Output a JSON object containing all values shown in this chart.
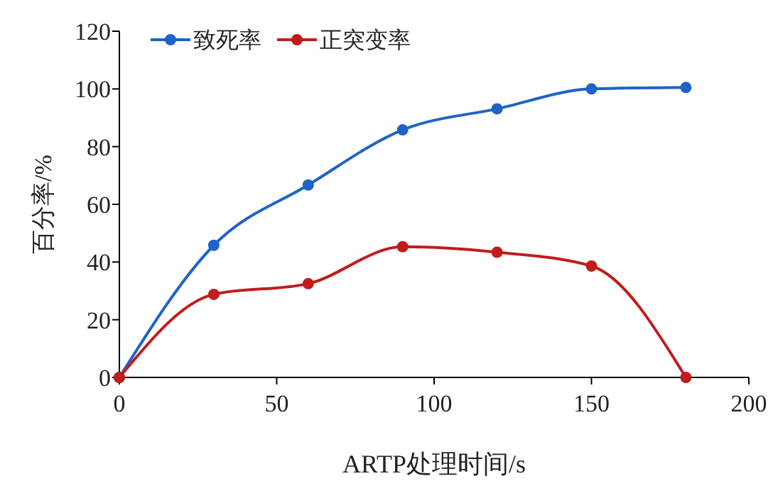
{
  "chart_data": {
    "type": "line",
    "xlabel": "ARTP处理时间/s",
    "ylabel": "百分率/%",
    "x": [
      0,
      30,
      60,
      90,
      120,
      150,
      180
    ],
    "series": [
      {
        "name": "致死率",
        "color": "#1f63c6",
        "values": [
          0,
          45.8,
          66.7,
          85.8,
          93.1,
          100,
          100.5
        ]
      },
      {
        "name": "正突变率",
        "color": "#c01c1c",
        "values": [
          0,
          28.8,
          32.5,
          45.3,
          43.4,
          38.6,
          0
        ]
      }
    ],
    "xlim": [
      0,
      200
    ],
    "xticks": [
      0,
      50,
      100,
      150,
      200
    ],
    "ylim": [
      0,
      120
    ],
    "yticks": [
      0,
      20,
      40,
      60,
      80,
      100,
      120
    ],
    "legend": "top left",
    "marker": "circle",
    "line_style": "solid",
    "grid": false
  }
}
